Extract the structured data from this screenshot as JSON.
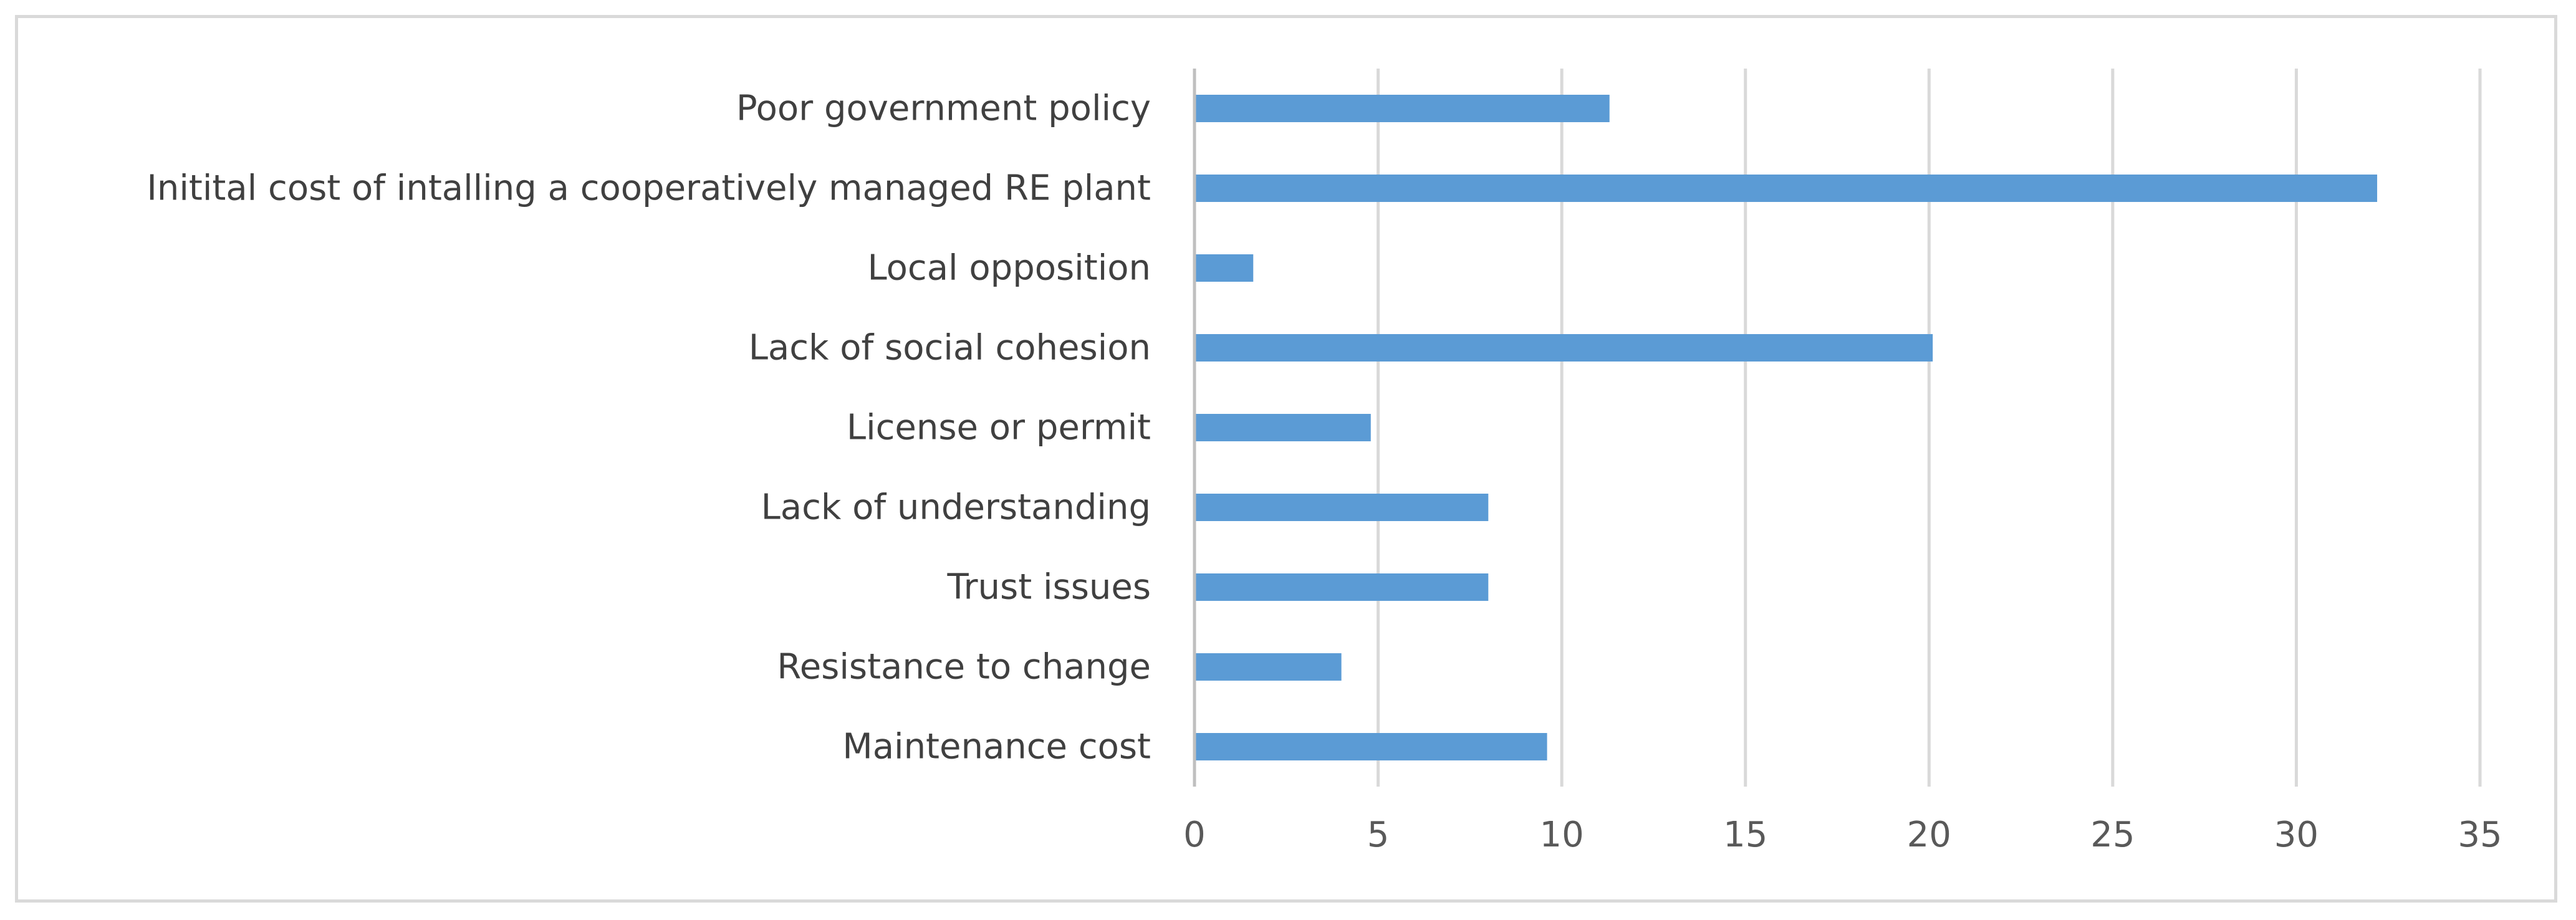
{
  "chart_data": {
    "type": "bar",
    "orientation": "horizontal",
    "title": "",
    "xlabel": "",
    "ylabel": "",
    "categories": [
      "Poor government policy",
      "Initital cost of intalling a cooperatively managed RE plant",
      "Local opposition",
      "Lack of social cohesion",
      "License or permit",
      "Lack of understanding",
      "Trust issues",
      "Resistance to change",
      "Maintenance cost"
    ],
    "values": [
      11.3,
      32.2,
      1.6,
      20.1,
      4.8,
      8.0,
      8.0,
      4.0,
      9.6
    ],
    "xlim": [
      0,
      35
    ],
    "xticks": [
      0,
      5,
      10,
      15,
      20,
      25,
      30,
      35
    ],
    "grid": true,
    "legend": "none",
    "colors": {
      "bar": "#5b9bd5",
      "grid": "#d9d9d9",
      "axis": "#bfbfbf"
    }
  }
}
